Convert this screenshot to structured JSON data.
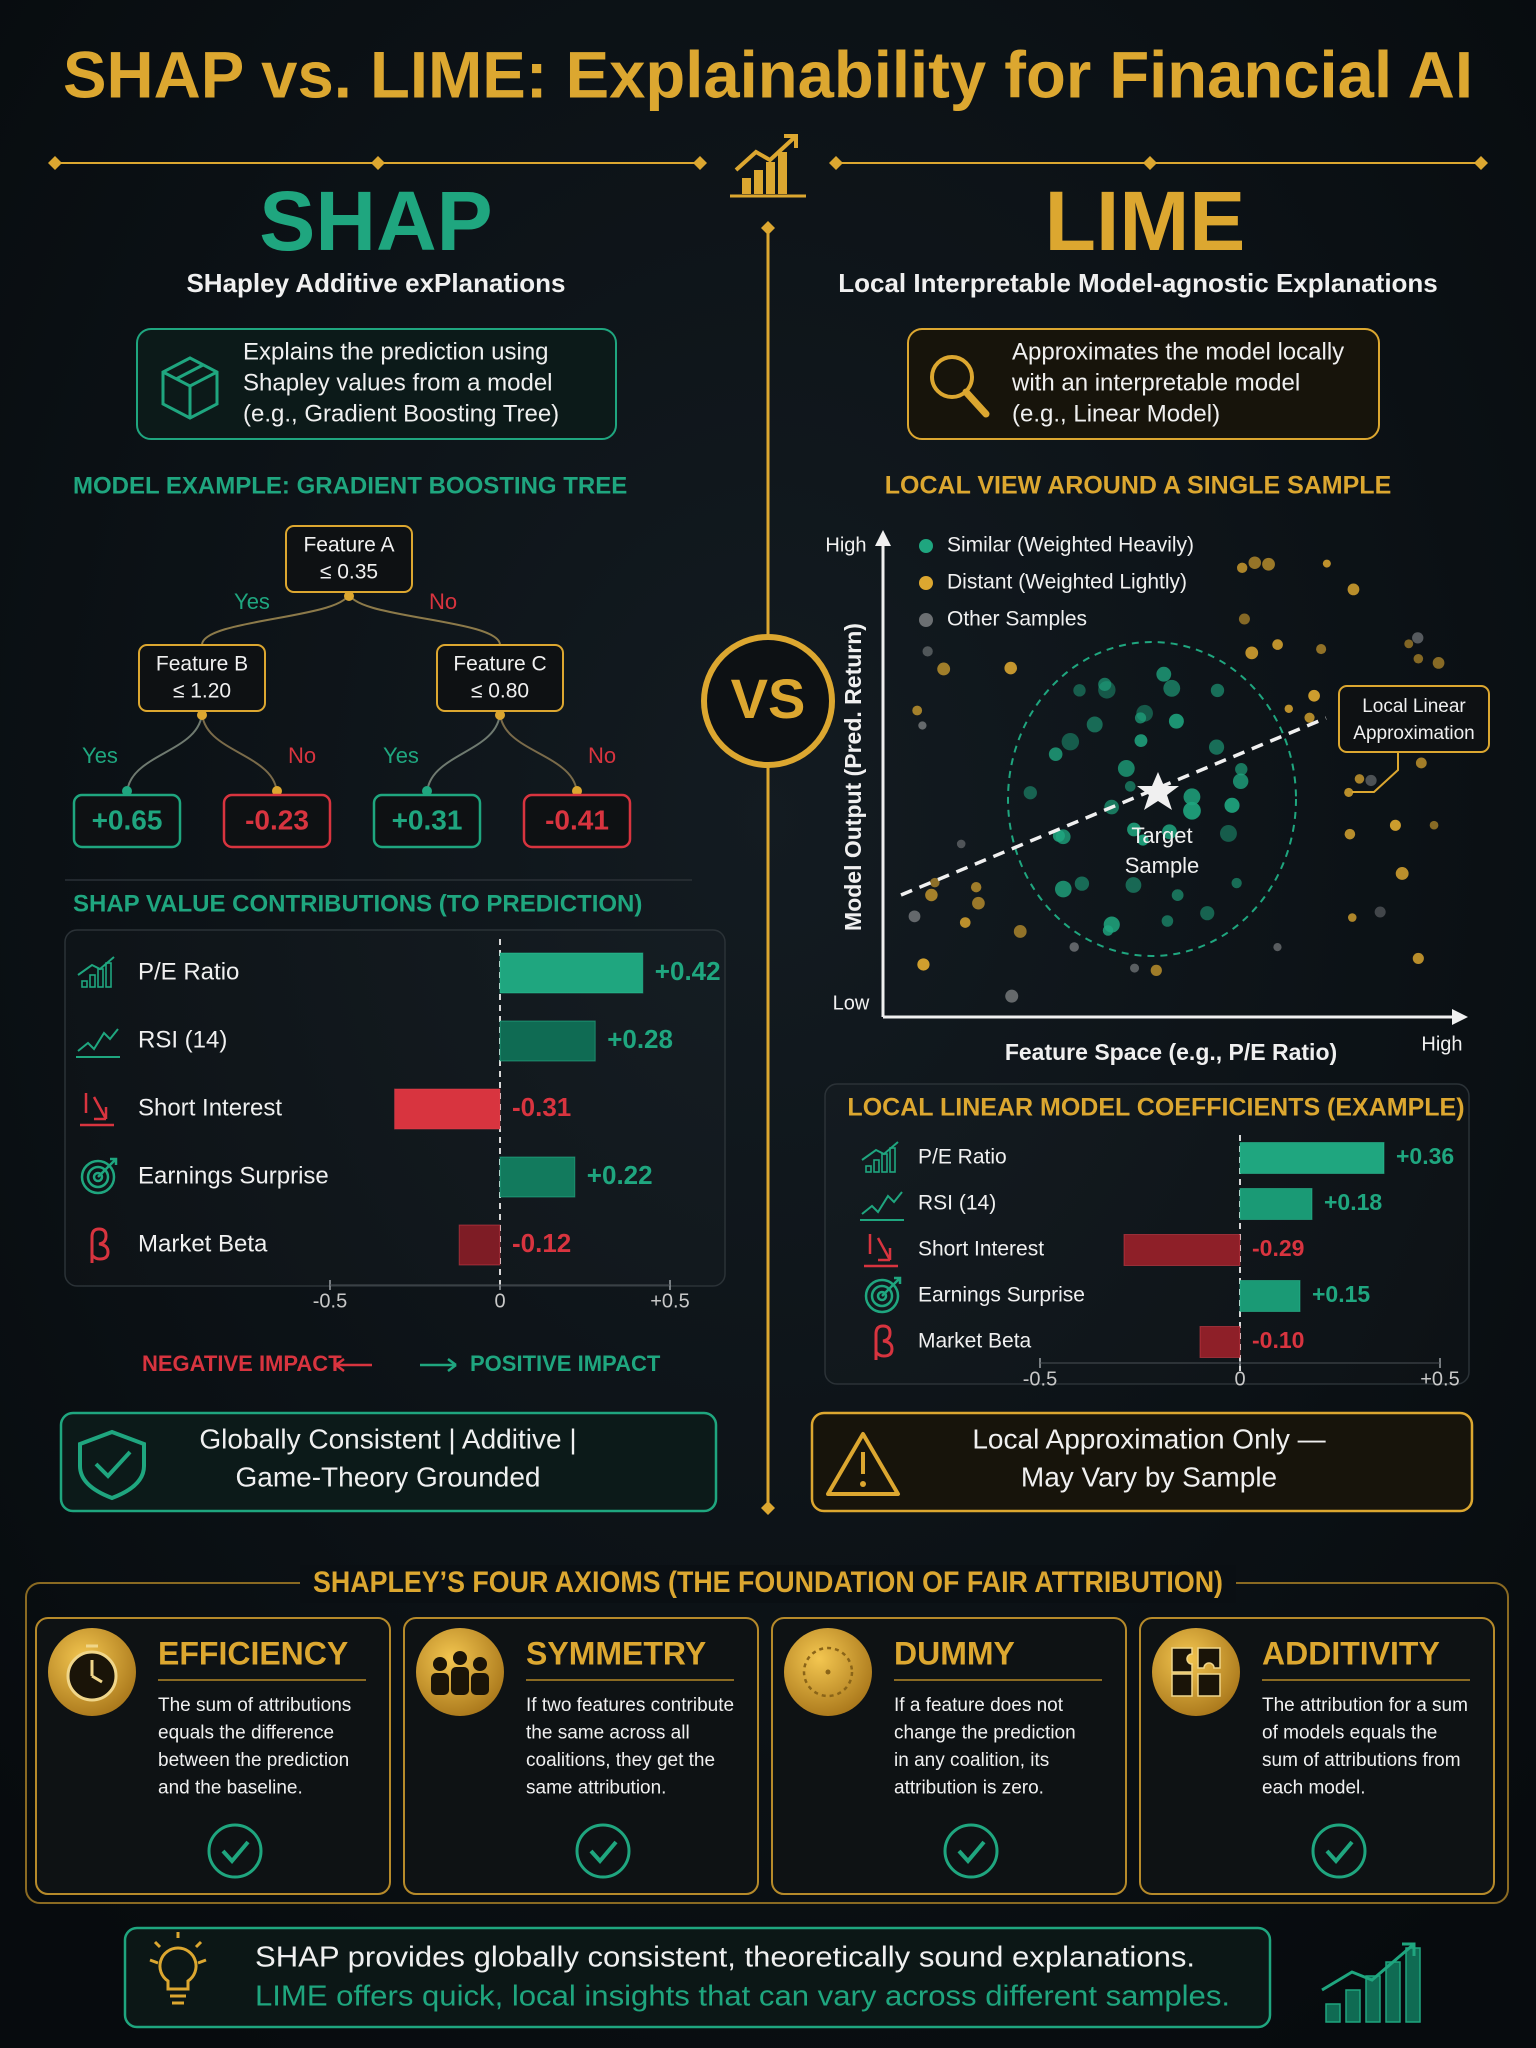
{
  "header": {
    "title": "SHAP vs. LIME: Explainability for Financial AI"
  },
  "vs": "VS",
  "shap": {
    "name": "SHAP",
    "subtitle": "SHapley Additive exPlanations",
    "description": [
      "Explains the prediction using",
      "Shapley values from a model",
      "(e.g., Gradient Boosting Tree)"
    ],
    "model_heading": "MODEL EXAMPLE: GRADIENT BOOSTING TREE",
    "tree": {
      "nodes": [
        [
          "Feature A",
          "≤ 0.35"
        ],
        [
          "Feature B",
          "≤ 1.20"
        ],
        [
          "Feature C",
          "≤ 0.80"
        ]
      ],
      "branches": [
        "Yes",
        "No",
        "Yes",
        "No",
        "Yes",
        "No"
      ],
      "leaves": [
        "+0.65",
        "-0.23",
        "+0.31",
        "-0.41"
      ]
    },
    "impact": {
      "negative": "NEGATIVE IMPACT",
      "positive": "POSITIVE IMPACT"
    },
    "summary": [
      "Globally Consistent | Additive |",
      "Game-Theory Grounded"
    ]
  },
  "lime": {
    "name": "LIME",
    "subtitle": "Local Interpretable Model-agnostic Explanations",
    "description": [
      "Approximates the model locally",
      "with an interpretable model",
      "(e.g., Linear Model)"
    ],
    "local_view": {
      "title": "LOCAL VIEW AROUND A SINGLE SAMPLE",
      "legend": [
        "Similar (Weighted Heavily)",
        "Distant (Weighted Lightly)",
        "Other Samples"
      ],
      "y_label": "Model Output (Pred. Return)",
      "y_high": "High",
      "y_low": "Low",
      "x_label": "Feature Space (e.g., P/E Ratio)",
      "x_high": "High",
      "target": [
        "Target",
        "Sample"
      ],
      "callout": [
        "Local Linear",
        "Approximation"
      ]
    },
    "summary": [
      "Local Approximation Only —",
      "May Vary by Sample"
    ]
  },
  "axioms": {
    "title": "SHAPLEY’S FOUR AXIOMS (THE FOUNDATION OF FAIR ATTRIBUTION)",
    "items": [
      {
        "name": "EFFICIENCY",
        "text": [
          "The sum of attributions",
          "equals the difference",
          "between the prediction",
          "and the baseline."
        ]
      },
      {
        "name": "SYMMETRY",
        "text": [
          "If two features contribute",
          "the same across all",
          "coalitions, they get the",
          "same attribution."
        ]
      },
      {
        "name": "DUMMY",
        "text": [
          "If a feature does not",
          "change the prediction",
          "in any coalition, its",
          "attribution is zero."
        ]
      },
      {
        "name": "ADDITIVITY",
        "text": [
          "The attribution for a sum",
          "of models equals the",
          "sum of attributions from",
          "each model."
        ]
      }
    ]
  },
  "footer": [
    "SHAP provides globally consistent, theoretically sound explanations.",
    "LIME offers quick, local insights that can vary across different samples."
  ],
  "chart_data": [
    {
      "type": "bar",
      "orientation": "horizontal",
      "title": "SHAP VALUE CONTRIBUTIONS (TO PREDICTION)",
      "categories": [
        "P/E Ratio",
        "RSI (14)",
        "Short Interest",
        "Earnings Surprise",
        "Market Beta"
      ],
      "values": [
        0.42,
        0.28,
        -0.31,
        0.22,
        -0.12
      ],
      "value_labels": [
        "+0.42",
        "+0.28",
        "-0.31",
        "+0.22",
        "-0.12"
      ],
      "colors": [
        "#1fa67f",
        "#0f6b53",
        "#d8343f",
        "#127a5d",
        "#7e1c25"
      ],
      "xlim": [
        -0.5,
        0.5
      ],
      "xticks": [
        -0.5,
        0,
        {
          "value": 0.5,
          "label": "+0.5"
        }
      ]
    },
    {
      "type": "bar",
      "orientation": "horizontal",
      "title": "LOCAL LINEAR MODEL COEFFICIENTS (EXAMPLE)",
      "categories": [
        "P/E Ratio",
        "RSI (14)",
        "Short Interest",
        "Earnings Surprise",
        "Market Beta"
      ],
      "values": [
        0.36,
        0.18,
        -0.29,
        0.15,
        -0.1
      ],
      "value_labels": [
        "+0.36",
        "+0.18",
        "-0.29",
        "+0.15",
        "-0.10"
      ],
      "colors": [
        "#1fa67f",
        "#1a9a75",
        "#8e1f28",
        "#1a9a75",
        "#8e1f28"
      ],
      "xlim": [
        -0.5,
        0.5
      ],
      "xticks": [
        -0.5,
        0,
        {
          "value": 0.5,
          "label": "+0.5"
        }
      ]
    }
  ]
}
